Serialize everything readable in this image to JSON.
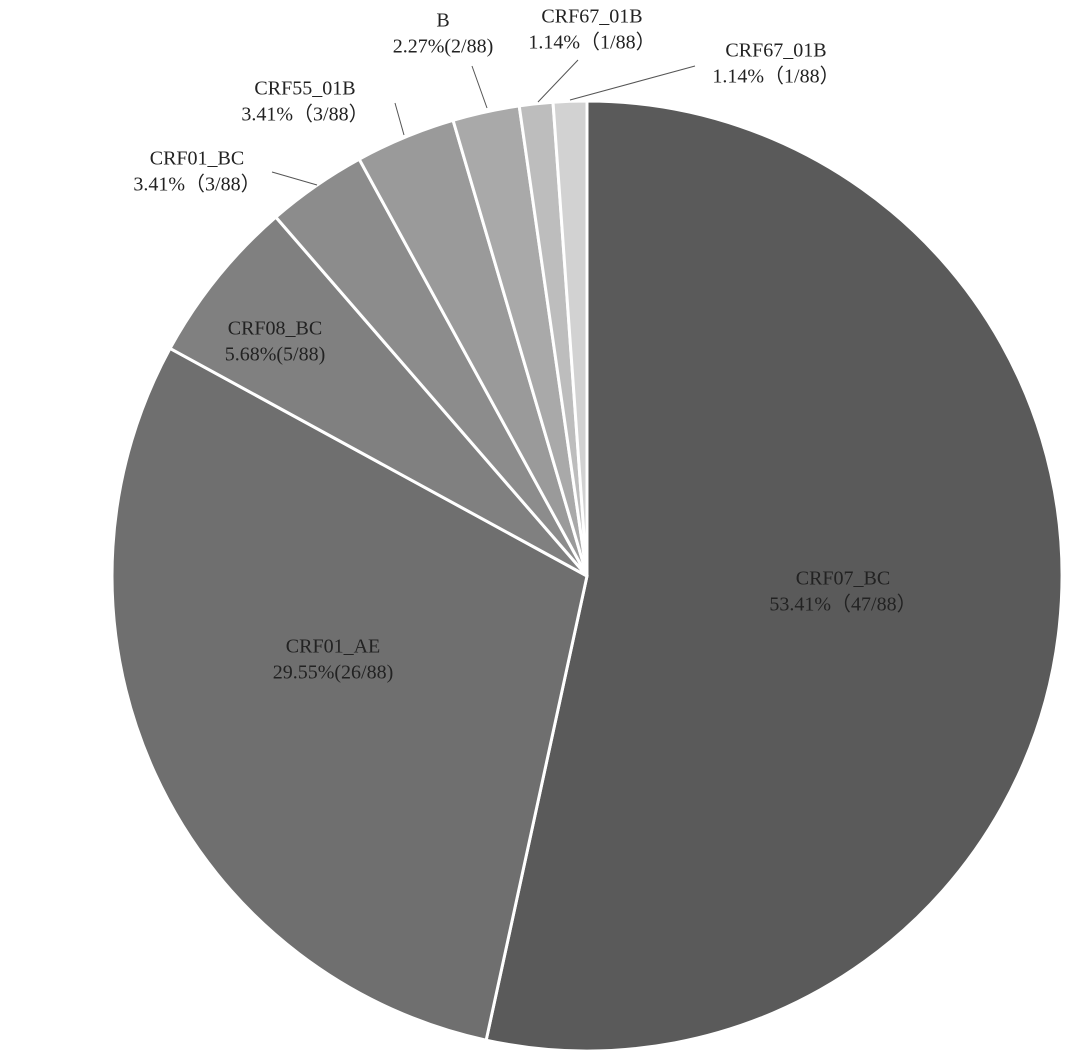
{
  "chart_data": {
    "type": "pie",
    "categories": [
      "CRF07_BC",
      "CRF01_AE",
      "CRF08_BC",
      "CRF01_BC",
      "CRF55_01B",
      "B",
      "CRF67_01B",
      "CRF67_01B"
    ],
    "values": [
      53.41,
      29.55,
      5.68,
      3.41,
      3.41,
      2.27,
      1.14,
      1.14
    ],
    "value_labels": [
      "53.41%（47/88）",
      "29.55%(26/88)",
      "5.68%(5/88)",
      "3.41%（3/88）",
      "3.41%（3/88）",
      "2.27%(2/88)",
      "1.14%（1/88）",
      "1.14%（1/88）"
    ],
    "colors": [
      "#5a5a5a",
      "#6f6f6f",
      "#808080",
      "#8c8c8c",
      "#9a9a9a",
      "#a9a9a9",
      "#bdbdbd",
      "#d2d2d2"
    ]
  }
}
